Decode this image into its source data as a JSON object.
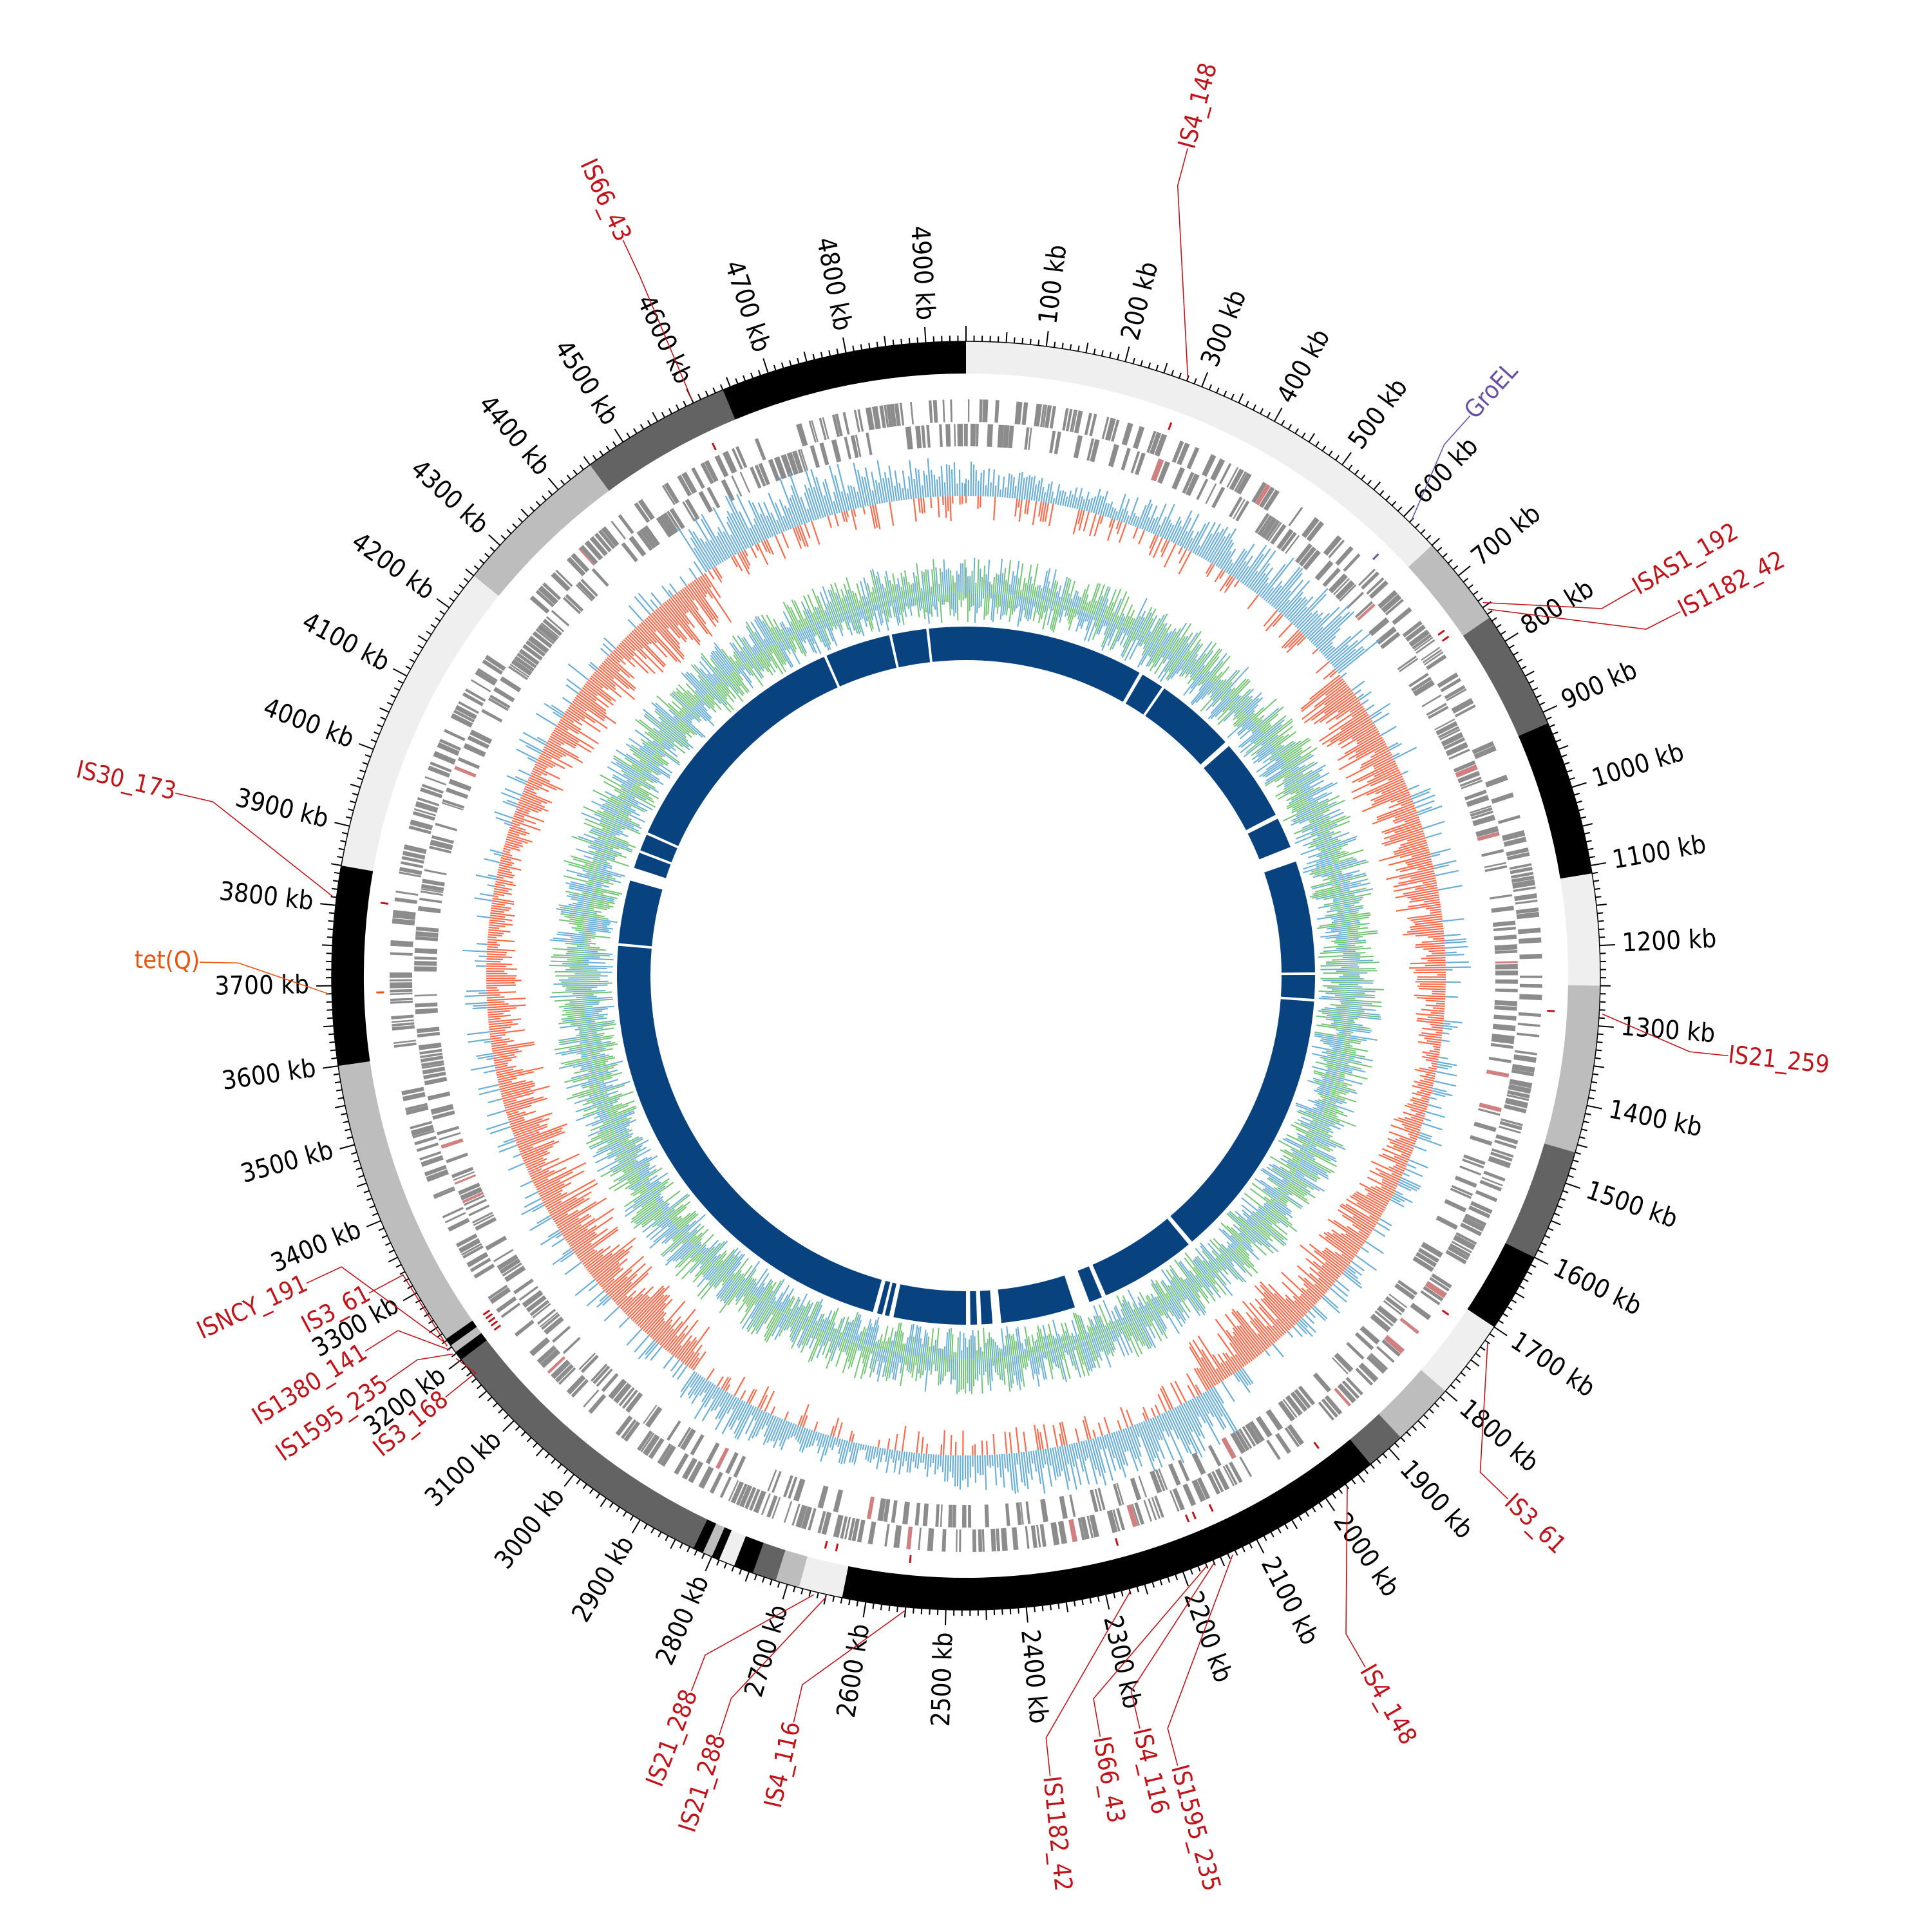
{
  "genome": {
    "length_kb": 4950,
    "tick_labels": [
      "100 kb",
      "200 kb",
      "300 kb",
      "400 kb",
      "500 kb",
      "600 kb",
      "700 kb",
      "800 kb",
      "900 kb",
      "1000 kb",
      "1100 kb",
      "1200 kb",
      "1300 kb",
      "1400 kb",
      "1500 kb",
      "1600 kb",
      "1700 kb",
      "1800 kb",
      "1900 kb",
      "2000 kb",
      "2100 kb",
      "2200 kb",
      "2300 kb",
      "2400 kb",
      "2500 kb",
      "2600 kb",
      "2700 kb",
      "2800 kb",
      "2900 kb",
      "3000 kb",
      "3100 kb",
      "3200 kb",
      "3300 kb",
      "3400 kb",
      "3500 kb",
      "3600 kb",
      "3700 kb",
      "3800 kb",
      "3900 kb",
      "4000 kb",
      "4100 kb",
      "4200 kb",
      "4300 kb",
      "4400 kb",
      "4500 kb",
      "4600 kb",
      "4700 kb",
      "4800 kb",
      "4900 kb"
    ]
  },
  "contig_ring": [
    {
      "start": 0,
      "end": 650,
      "color": "#efefef"
    },
    {
      "start": 650,
      "end": 765,
      "color": "#bdbdbd"
    },
    {
      "start": 765,
      "end": 915,
      "color": "#636363"
    },
    {
      "start": 915,
      "end": 1110,
      "color": "#000000"
    },
    {
      "start": 1110,
      "end": 1250,
      "color": "#efefef"
    },
    {
      "start": 1250,
      "end": 1460,
      "color": "#bdbdbd"
    },
    {
      "start": 1460,
      "end": 1600,
      "color": "#636363"
    },
    {
      "start": 1600,
      "end": 1700,
      "color": "#000000"
    },
    {
      "start": 1700,
      "end": 1800,
      "color": "#efefef"
    },
    {
      "start": 1800,
      "end": 1880,
      "color": "#bdbdbd"
    },
    {
      "start": 1880,
      "end": 1930,
      "color": "#636363"
    },
    {
      "start": 1930,
      "end": 2630,
      "color": "#000000"
    },
    {
      "start": 2630,
      "end": 2685,
      "color": "#efefef"
    },
    {
      "start": 2685,
      "end": 2715,
      "color": "#bdbdbd"
    },
    {
      "start": 2715,
      "end": 2745,
      "color": "#636363"
    },
    {
      "start": 2745,
      "end": 2770,
      "color": "#000000"
    },
    {
      "start": 2770,
      "end": 2790,
      "color": "#efefef"
    },
    {
      "start": 2790,
      "end": 2800,
      "color": "#000000"
    },
    {
      "start": 2800,
      "end": 2812,
      "color": "#bdbdbd"
    },
    {
      "start": 2812,
      "end": 2825,
      "color": "#000000"
    },
    {
      "start": 2825,
      "end": 3200,
      "color": "#636363"
    },
    {
      "start": 3200,
      "end": 3212,
      "color": "#000000"
    },
    {
      "start": 3212,
      "end": 3222,
      "color": "#bdbdbd"
    },
    {
      "start": 3222,
      "end": 3232,
      "color": "#000000"
    },
    {
      "start": 3232,
      "end": 3600,
      "color": "#bdbdbd"
    },
    {
      "start": 3600,
      "end": 3850,
      "color": "#000000"
    },
    {
      "start": 3850,
      "end": 4250,
      "color": "#efefef"
    },
    {
      "start": 4250,
      "end": 4450,
      "color": "#bdbdbd"
    },
    {
      "start": 4450,
      "end": 4640,
      "color": "#636363"
    },
    {
      "start": 4640,
      "end": 4950,
      "color": "#000000"
    }
  ],
  "alignment_blocks": [
    {
      "start": 0,
      "end": 410
    },
    {
      "start": 418,
      "end": 470
    },
    {
      "start": 476,
      "end": 660
    },
    {
      "start": 672,
      "end": 860
    },
    {
      "start": 870,
      "end": 940
    },
    {
      "start": 975,
      "end": 1230
    },
    {
      "start": 1236,
      "end": 1290
    },
    {
      "start": 1296,
      "end": 1920
    },
    {
      "start": 1930,
      "end": 2150
    },
    {
      "start": 2160,
      "end": 2190
    },
    {
      "start": 2225,
      "end": 2395
    },
    {
      "start": 2415,
      "end": 2440
    },
    {
      "start": 2450,
      "end": 2465
    },
    {
      "start": 2475,
      "end": 2640
    },
    {
      "start": 2650,
      "end": 2660
    },
    {
      "start": 2666,
      "end": 2678
    },
    {
      "start": 2688,
      "end": 3780
    },
    {
      "start": 3786,
      "end": 3930
    },
    {
      "start": 3960,
      "end": 3996
    },
    {
      "start": 4002,
      "end": 4040
    },
    {
      "start": 4046,
      "end": 4620
    },
    {
      "start": 4626,
      "end": 4775
    },
    {
      "start": 4781,
      "end": 4860
    },
    {
      "start": 4866,
      "end": 4950
    }
  ],
  "annotations": [
    {
      "label": "IS4_148",
      "position": 280,
      "label_angle_deg": 15,
      "label_radius": 1330,
      "color": "#c0141b"
    },
    {
      "label": "GroEL",
      "position": 610,
      "label_angle_deg": 42,
      "label_radius": 1170,
      "color": "#6a51a3"
    },
    {
      "label": "ISAS1_192",
      "position": 745,
      "label_angle_deg": 60,
      "label_radius": 1200,
      "color": "#c0141b"
    },
    {
      "label": "IS1182_42",
      "position": 755,
      "label_angle_deg": 63,
      "label_radius": 1245,
      "color": "#c0141b"
    },
    {
      "label": "IS21_259",
      "position": 1285,
      "label_angle_deg": 96,
      "label_radius": 1190,
      "color": "#c0141b"
    },
    {
      "label": "IS3_61",
      "position": 1720,
      "label_angle_deg": 134,
      "label_radius": 1170,
      "color": "#c0141b"
    },
    {
      "label": "IS4_148",
      "position": 1970,
      "label_angle_deg": 150,
      "label_radius": 1240,
      "color": "#c0141b"
    },
    {
      "label": "IS1595_235",
      "position": 2135,
      "label_angle_deg": 165,
      "label_radius": 1270,
      "color": "#c0141b"
    },
    {
      "label": "IS4_116",
      "position": 2160,
      "label_angle_deg": 167,
      "label_radius": 1200,
      "color": "#c0141b"
    },
    {
      "label": "IS66_43",
      "position": 2170,
      "label_angle_deg": 170,
      "label_radius": 1200,
      "color": "#c0141b"
    },
    {
      "label": "IS1182_42",
      "position": 2270,
      "label_angle_deg": 174,
      "label_radius": 1250,
      "color": "#c0141b"
    },
    {
      "label": "IS4_116",
      "position": 2550,
      "label_angle_deg": 193,
      "label_radius": 1190,
      "color": "#c0141b"
    },
    {
      "label": "IS21_288",
      "position": 2650,
      "label_angle_deg": 198,
      "label_radius": 1240,
      "color": "#c0141b"
    },
    {
      "label": "IS21_288",
      "position": 2665,
      "label_angle_deg": 201,
      "label_radius": 1190,
      "color": "#c0141b"
    },
    {
      "label": "IS3_168",
      "position": 3205,
      "label_angle_deg": 231,
      "label_radius": 1040,
      "color": "#c0141b"
    },
    {
      "label": "IS1595_235",
      "position": 3212,
      "label_angle_deg": 235,
      "label_radius": 1100,
      "color": "#c0141b"
    },
    {
      "label": "IS1380_141",
      "position": 3218,
      "label_angle_deg": 238,
      "label_radius": 1100,
      "color": "#c0141b"
    },
    {
      "label": "IS3_61",
      "position": 3224,
      "label_angle_deg": 242,
      "label_radius": 1050,
      "color": "#c0141b"
    },
    {
      "label": "ISNCY_191",
      "position": 3230,
      "label_angle_deg": 245,
      "label_radius": 1130,
      "color": "#c0141b"
    },
    {
      "label": "tet(Q)",
      "position": 3690,
      "label_angle_deg": 271,
      "label_radius": 1190,
      "color": "#e6550d"
    },
    {
      "label": "IS30_173",
      "position": 3810,
      "label_angle_deg": 283,
      "label_radius": 1260,
      "color": "#c0141b"
    },
    {
      "label": "IS66_43",
      "position": 4600,
      "label_angle_deg": 335,
      "label_radius": 1260,
      "color": "#c0141b"
    }
  ],
  "track_colors": {
    "cds": "#8c8c8c",
    "cds_highlight": "#d08080",
    "gc_skew_pos": "#6baed6",
    "gc_skew_neg": "#fb6a4a",
    "gc_content": "#74c476",
    "alignment": "#08427f",
    "tick": "#000000"
  }
}
